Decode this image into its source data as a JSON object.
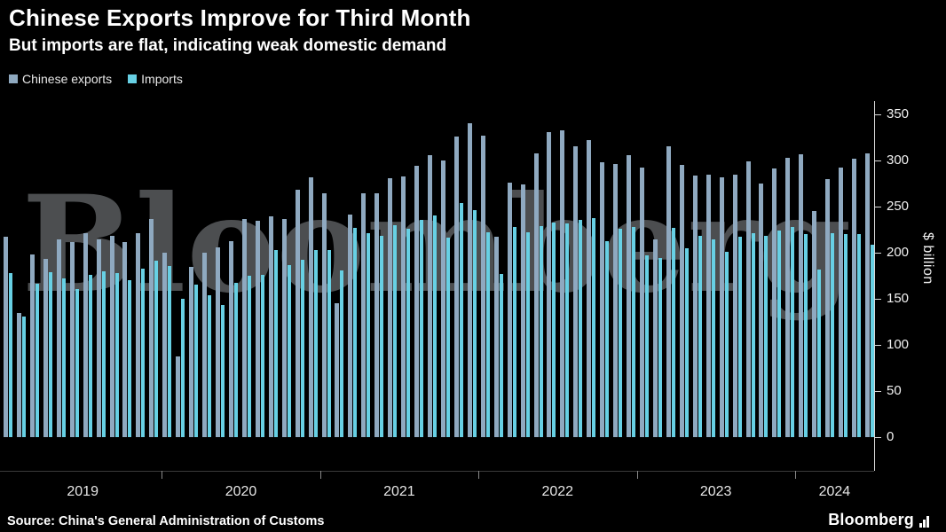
{
  "header": {
    "title": "Chinese Exports Improve for Third Month",
    "subtitle": "But imports are flat, indicating weak domestic demand"
  },
  "legend": [
    {
      "label": "Chinese exports",
      "color": "#8fa9c0"
    },
    {
      "label": "Imports",
      "color": "#67d0e4"
    }
  ],
  "watermark": "Bloomberg",
  "source": "Source: China's General Administration of Customs",
  "branding": {
    "logo_text": "Bloomberg"
  },
  "chart_data": {
    "type": "bar",
    "title": "Chinese Exports Improve for Third Month",
    "subtitle": "But imports are flat, indicating weak domestic demand",
    "xlabel": "",
    "ylabel": "$ billion",
    "ylim": [
      0,
      350
    ],
    "yticks": [
      0,
      50,
      100,
      150,
      200,
      250,
      300,
      350
    ],
    "grid": false,
    "legend_position": "top-left",
    "x_axis_year_labels": [
      "2019",
      "2020",
      "2021",
      "2022",
      "2023",
      "2024"
    ],
    "categories": [
      "2019-01",
      "2019-02",
      "2019-03",
      "2019-04",
      "2019-05",
      "2019-06",
      "2019-07",
      "2019-08",
      "2019-09",
      "2019-10",
      "2019-11",
      "2019-12",
      "2020-01",
      "2020-02",
      "2020-03",
      "2020-04",
      "2020-05",
      "2020-06",
      "2020-07",
      "2020-08",
      "2020-09",
      "2020-10",
      "2020-11",
      "2020-12",
      "2021-01",
      "2021-02",
      "2021-03",
      "2021-04",
      "2021-05",
      "2021-06",
      "2021-07",
      "2021-08",
      "2021-09",
      "2021-10",
      "2021-11",
      "2021-12",
      "2022-01",
      "2022-02",
      "2022-03",
      "2022-04",
      "2022-05",
      "2022-06",
      "2022-07",
      "2022-08",
      "2022-09",
      "2022-10",
      "2022-11",
      "2022-12",
      "2023-01",
      "2023-02",
      "2023-03",
      "2023-04",
      "2023-05",
      "2023-06",
      "2023-07",
      "2023-08",
      "2023-09",
      "2023-10",
      "2023-11",
      "2023-12",
      "2024-01",
      "2024-02",
      "2024-03",
      "2024-04",
      "2024-05",
      "2024-06"
    ],
    "series": [
      {
        "name": "Chinese exports",
        "color": "#8fa9c0",
        "values": [
          217,
          135,
          198,
          193,
          214,
          212,
          221,
          214,
          218,
          212,
          221,
          237,
          200,
          88,
          185,
          200,
          206,
          213,
          237,
          235,
          239,
          237,
          268,
          282,
          264,
          145,
          241,
          264,
          264,
          281,
          283,
          294,
          306,
          300,
          326,
          340,
          327,
          217,
          276,
          274,
          308,
          331,
          333,
          315,
          322,
          298,
          296,
          306,
          292,
          214,
          315,
          295,
          284,
          285,
          282,
          285,
          299,
          275,
          291,
          303,
          307,
          245,
          280,
          292,
          302,
          308
        ]
      },
      {
        "name": "Imports",
        "color": "#67d0e4",
        "values": [
          178,
          131,
          166,
          179,
          172,
          161,
          176,
          180,
          178,
          170,
          183,
          191,
          186,
          150,
          165,
          154,
          143,
          167,
          175,
          176,
          203,
          187,
          192,
          203,
          203,
          181,
          227,
          221,
          218,
          230,
          226,
          236,
          240,
          216,
          254,
          246,
          222,
          177,
          228,
          222,
          229,
          233,
          232,
          236,
          238,
          213,
          226,
          228,
          197,
          194,
          227,
          205,
          218,
          214,
          201,
          217,
          221,
          218,
          224,
          228,
          220,
          182,
          221,
          220,
          220,
          209
        ]
      }
    ]
  }
}
